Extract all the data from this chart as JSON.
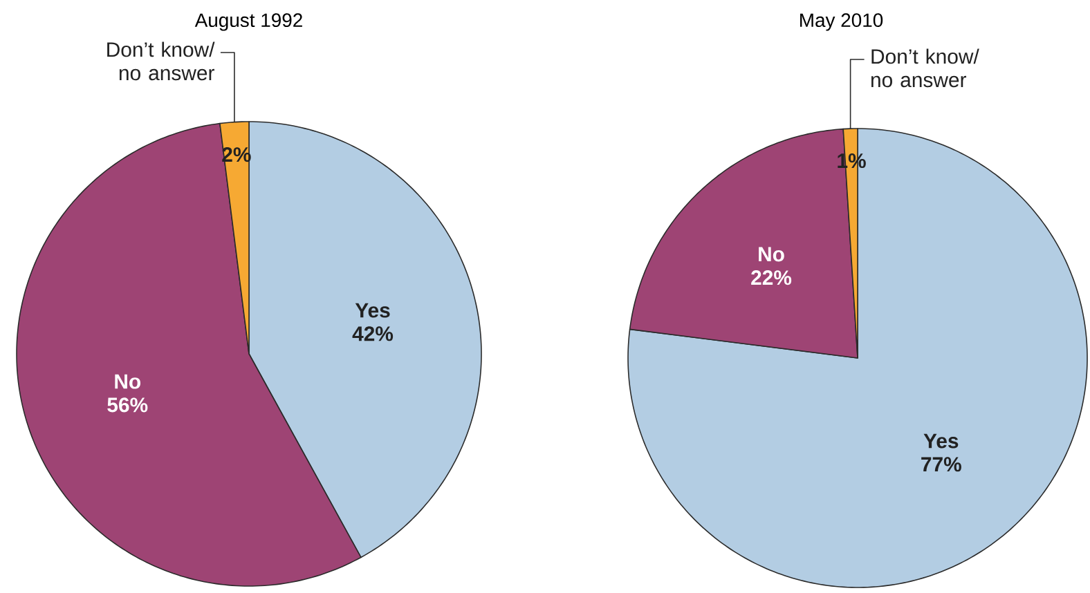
{
  "chart_data": [
    {
      "type": "pie",
      "title": "August 1992",
      "categories": [
        "Yes",
        "No",
        "Don’t know/ no answer"
      ],
      "values": [
        42,
        56,
        2
      ],
      "value_labels": [
        "42%",
        "56%",
        "2%"
      ],
      "colors": [
        "#b3cde3",
        "#9e4474",
        "#f6a933"
      ]
    },
    {
      "type": "pie",
      "title": "May 2010",
      "categories": [
        "Yes",
        "No",
        "Don’t know/ no answer"
      ],
      "values": [
        77,
        22,
        1
      ],
      "value_labels": [
        "77%",
        "22%",
        "1%"
      ],
      "colors": [
        "#b3cde3",
        "#9e4474",
        "#f6a933"
      ]
    }
  ]
}
